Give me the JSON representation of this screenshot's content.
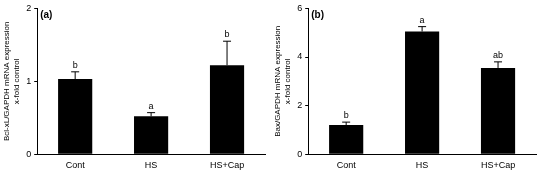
{
  "chart_data": [
    {
      "type": "bar",
      "title": "(a)",
      "ylabel": [
        "Bcl-xL/GAPDH mRNA expression",
        "x-fold control"
      ],
      "categories": [
        "Cont",
        "HS",
        "HS+Cap"
      ],
      "values": [
        1.03,
        0.52,
        1.22
      ],
      "errors": [
        0.1,
        0.05,
        0.33
      ],
      "significance_letters": [
        "b",
        "a",
        "b"
      ],
      "color": "#000000",
      "ylim": [
        0,
        2
      ],
      "yticks": [
        0,
        1,
        2
      ],
      "grid": false
    },
    {
      "type": "bar",
      "title": "(b)",
      "ylabel": [
        "Bax/GAPDH mRNA expression",
        "x-fold control"
      ],
      "categories": [
        "Cont",
        "HS",
        "HS+Cap"
      ],
      "values": [
        1.2,
        5.05,
        3.55
      ],
      "errors": [
        0.12,
        0.2,
        0.25
      ],
      "significance_letters": [
        "b",
        "a",
        "ab"
      ],
      "color": "#000000",
      "ylim": [
        0,
        6
      ],
      "yticks": [
        0,
        2,
        4,
        6
      ],
      "grid": false
    }
  ]
}
